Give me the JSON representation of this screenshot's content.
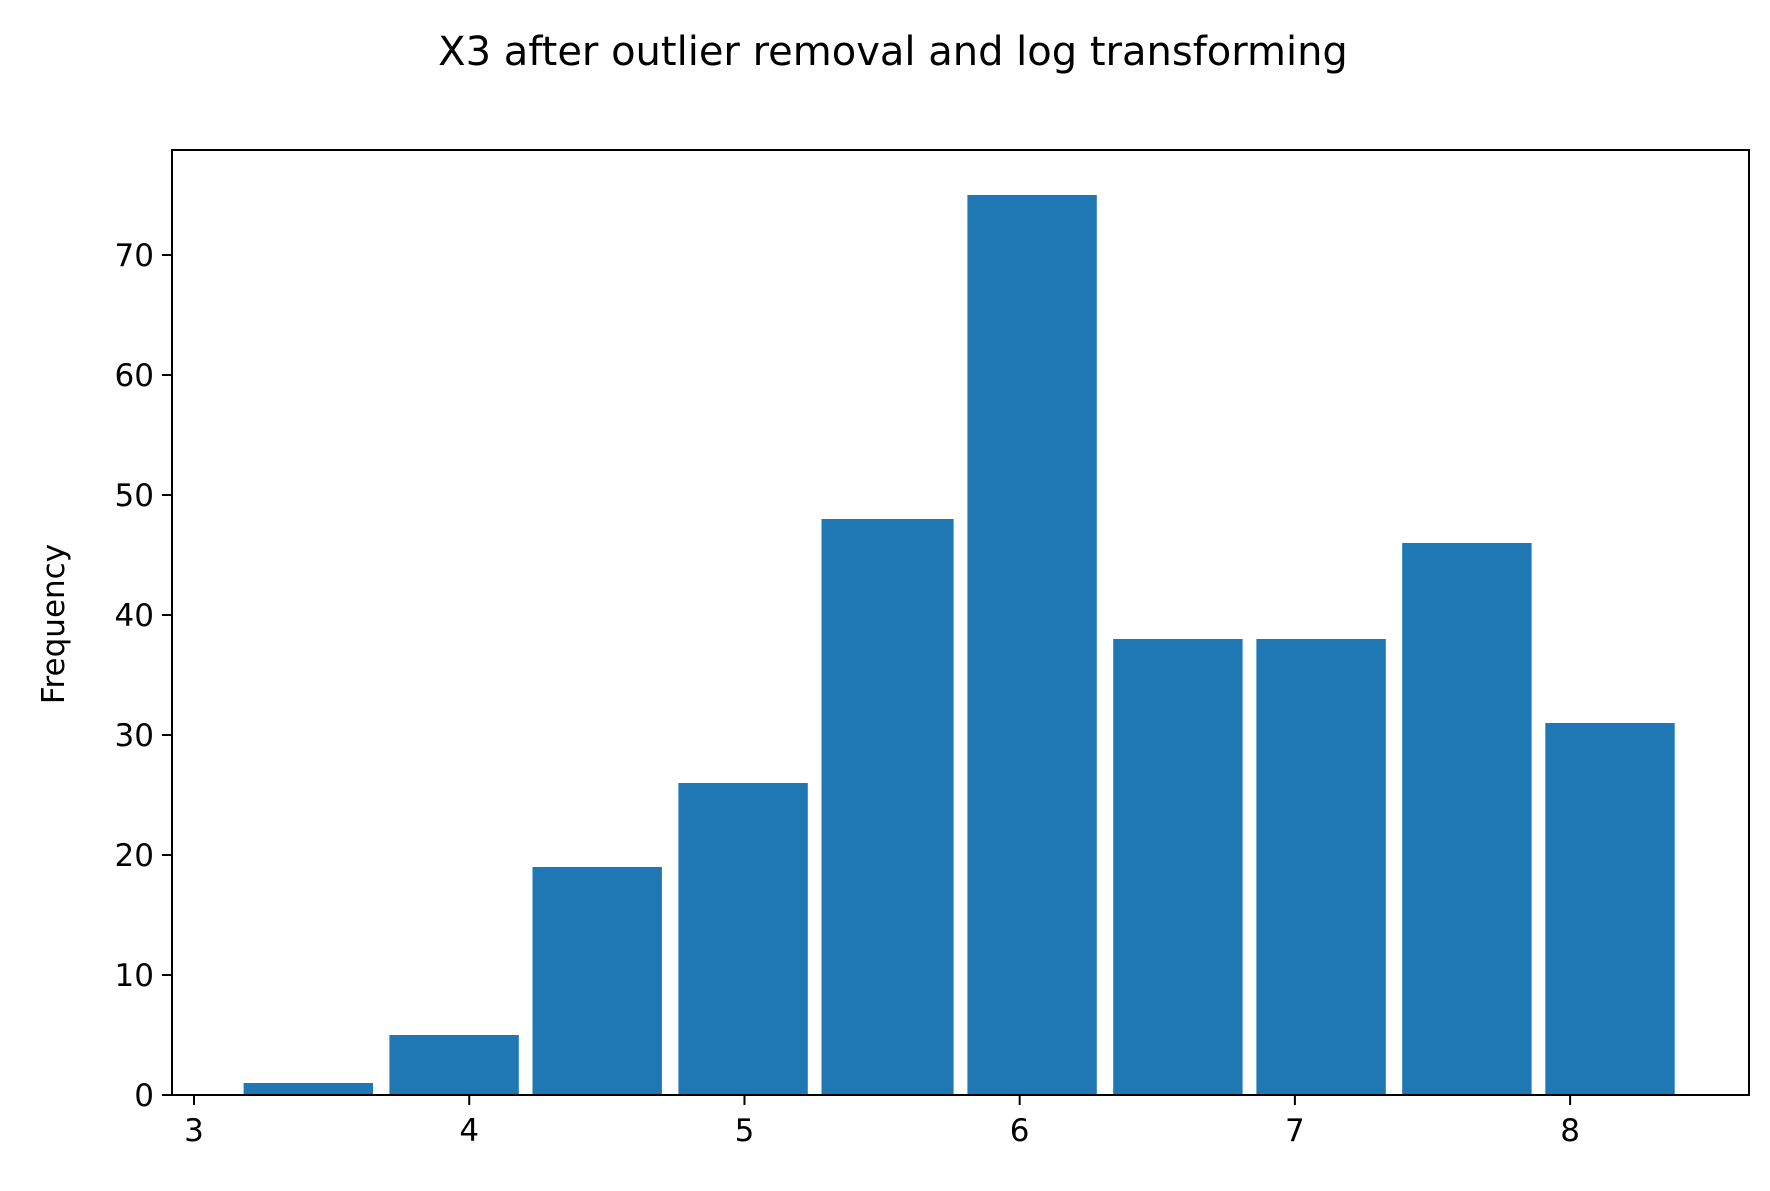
{
  "chart_data": {
    "type": "bar",
    "title": "X3 after outlier removal and log transforming",
    "xlabel": "",
    "ylabel": "Frequency",
    "bins": [
      {
        "x0": 3.18,
        "x1": 3.65,
        "value": 1
      },
      {
        "x0": 3.71,
        "x1": 4.18,
        "value": 5
      },
      {
        "x0": 4.23,
        "x1": 4.7,
        "value": 19
      },
      {
        "x0": 4.76,
        "x1": 5.23,
        "value": 26
      },
      {
        "x0": 5.28,
        "x1": 5.76,
        "value": 48
      },
      {
        "x0": 5.81,
        "x1": 6.28,
        "value": 75
      },
      {
        "x0": 6.34,
        "x1": 6.81,
        "value": 38
      },
      {
        "x0": 6.86,
        "x1": 7.33,
        "value": 38
      },
      {
        "x0": 7.39,
        "x1": 7.86,
        "value": 46
      },
      {
        "x0": 7.91,
        "x1": 8.38,
        "value": 31
      }
    ],
    "xticks": [
      3,
      4,
      5,
      6,
      7,
      8
    ],
    "yticks": [
      0,
      10,
      20,
      30,
      40,
      50,
      60,
      70
    ],
    "xlim": [
      2.92,
      8.65
    ],
    "ylim": [
      0,
      78.75
    ],
    "grid": false,
    "legend": "none",
    "bar_color": "#1f77b4"
  }
}
